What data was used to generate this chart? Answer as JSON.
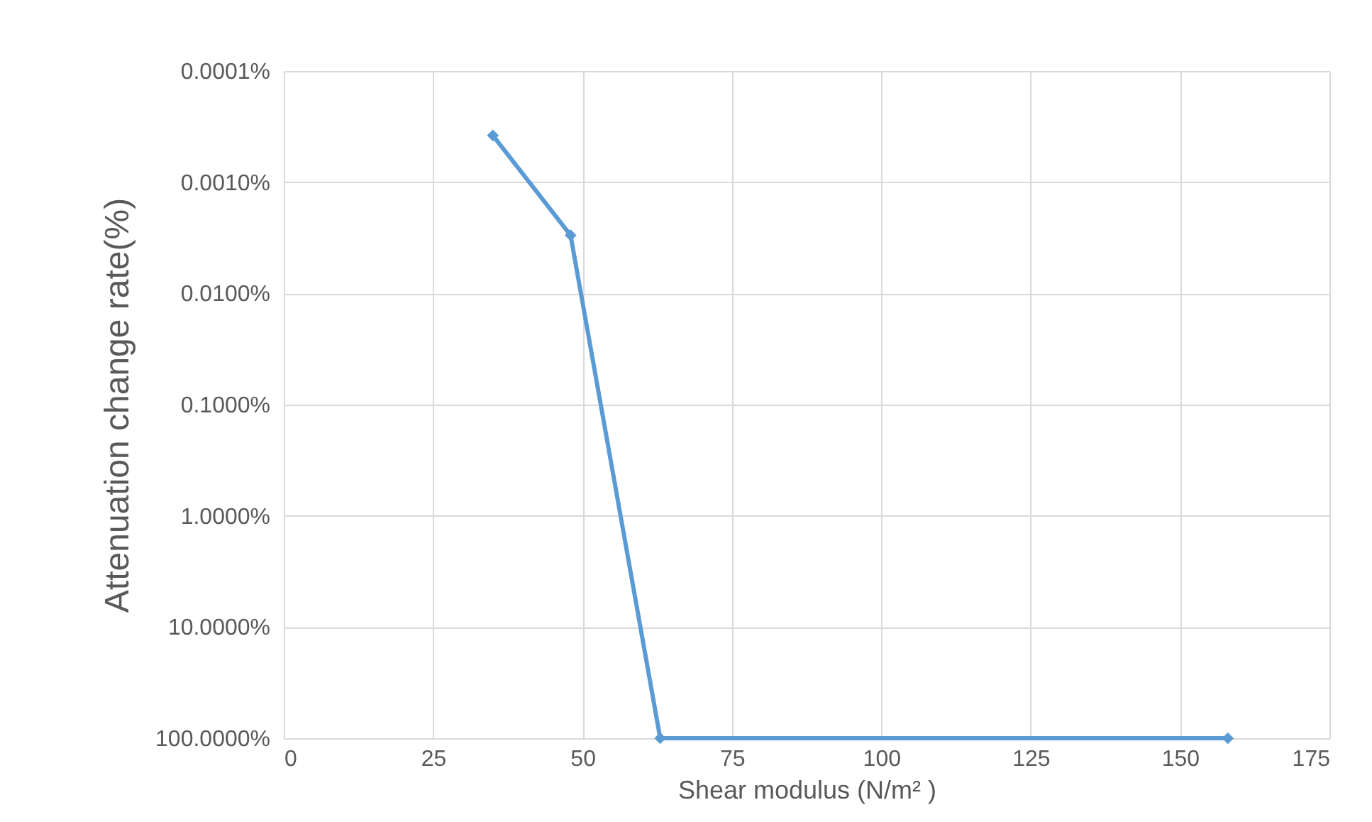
{
  "chart_data": {
    "type": "line",
    "xlabel": "Shear modulus (N/m² )",
    "ylabel": "Attenuation change rate(%)",
    "x": [
      35,
      48,
      63,
      158
    ],
    "series": [
      {
        "color": "#5b9bd5",
        "values": [
          0.00038,
          0.003,
          100,
          100
        ]
      }
    ],
    "xlim": [
      0,
      175
    ],
    "xticks": [
      0,
      25,
      50,
      75,
      100,
      125,
      150,
      175
    ],
    "ylim": [
      100,
      0.0001
    ],
    "yticks": [
      {
        "value": 0.0001,
        "label": "0.0001%"
      },
      {
        "value": 0.001,
        "label": "0.0010%"
      },
      {
        "value": 0.01,
        "label": "0.0100%"
      },
      {
        "value": 0.1,
        "label": "0.1000%"
      },
      {
        "value": 1,
        "label": "1.0000%"
      },
      {
        "value": 10,
        "label": "10.0000%"
      },
      {
        "value": 100,
        "label": "100.0000%"
      }
    ],
    "log": "y",
    "grid": true,
    "marker": "diamond",
    "line_style": "solid"
  }
}
